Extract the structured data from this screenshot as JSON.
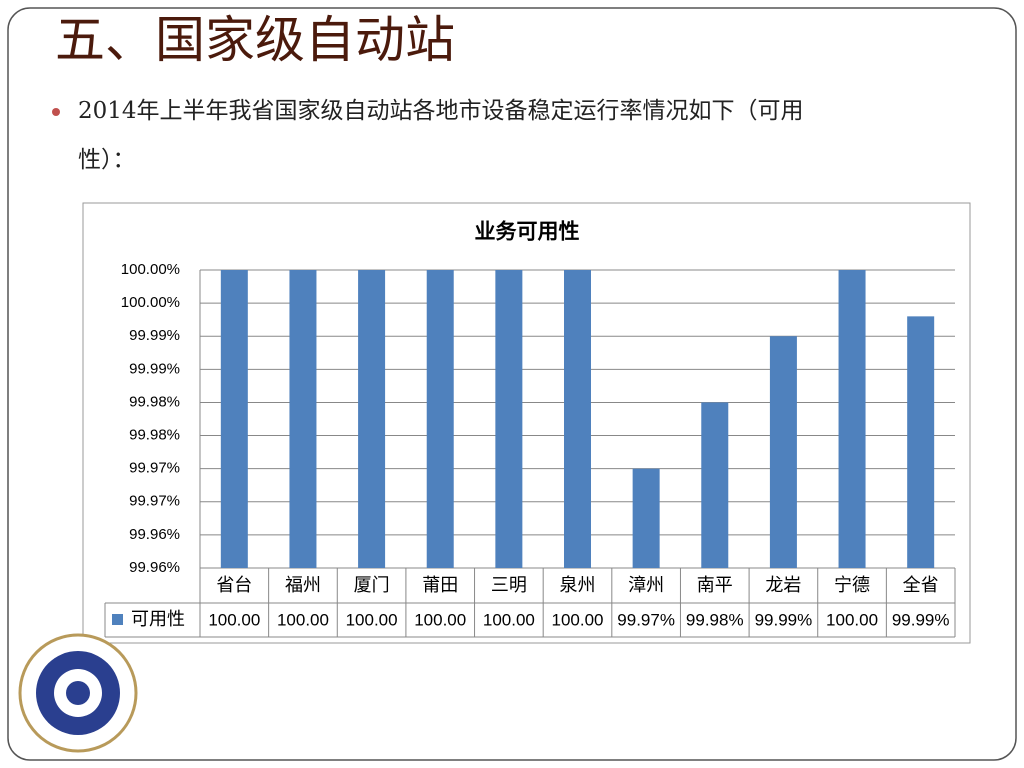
{
  "title": "五、国家级自动站",
  "bullet": [
    "2014年上半年我省国家级自动站各地市设备稳定运行率情况如下（可用",
    "性）："
  ],
  "chart_data": {
    "type": "bar",
    "title": "业务可用性",
    "categories": [
      "省台",
      "福州",
      "厦门",
      "莆田",
      "三明",
      "泉州",
      "漳州",
      "南平",
      "龙岩",
      "宁德",
      "全省"
    ],
    "series": [
      {
        "name": "可用性",
        "color": "#4f81bd",
        "values": [
          100,
          100,
          100,
          100,
          100,
          100,
          99.97,
          99.98,
          99.99,
          100,
          99.993
        ],
        "value_labels": [
          "100.00",
          "100.00",
          "100.00",
          "100.00",
          "100.00",
          "100.00",
          "99.97%",
          "99.98%",
          "99.99%",
          "100.00",
          "99.99%"
        ]
      }
    ],
    "ylim": [
      99.955,
      100
    ],
    "yticks": [
      {
        "value": 99.955,
        "label": "99.96%"
      },
      {
        "value": 99.96,
        "label": "99.96%"
      },
      {
        "value": 99.965,
        "label": "99.97%"
      },
      {
        "value": 99.97,
        "label": "99.97%"
      },
      {
        "value": 99.975,
        "label": "99.98%"
      },
      {
        "value": 99.98,
        "label": "99.98%"
      },
      {
        "value": 99.985,
        "label": "99.99%"
      },
      {
        "value": 99.99,
        "label": "99.99%"
      },
      {
        "value": 99.995,
        "label": "100.00%"
      },
      {
        "value": 100,
        "label": "100.00%"
      }
    ],
    "grid": true
  }
}
